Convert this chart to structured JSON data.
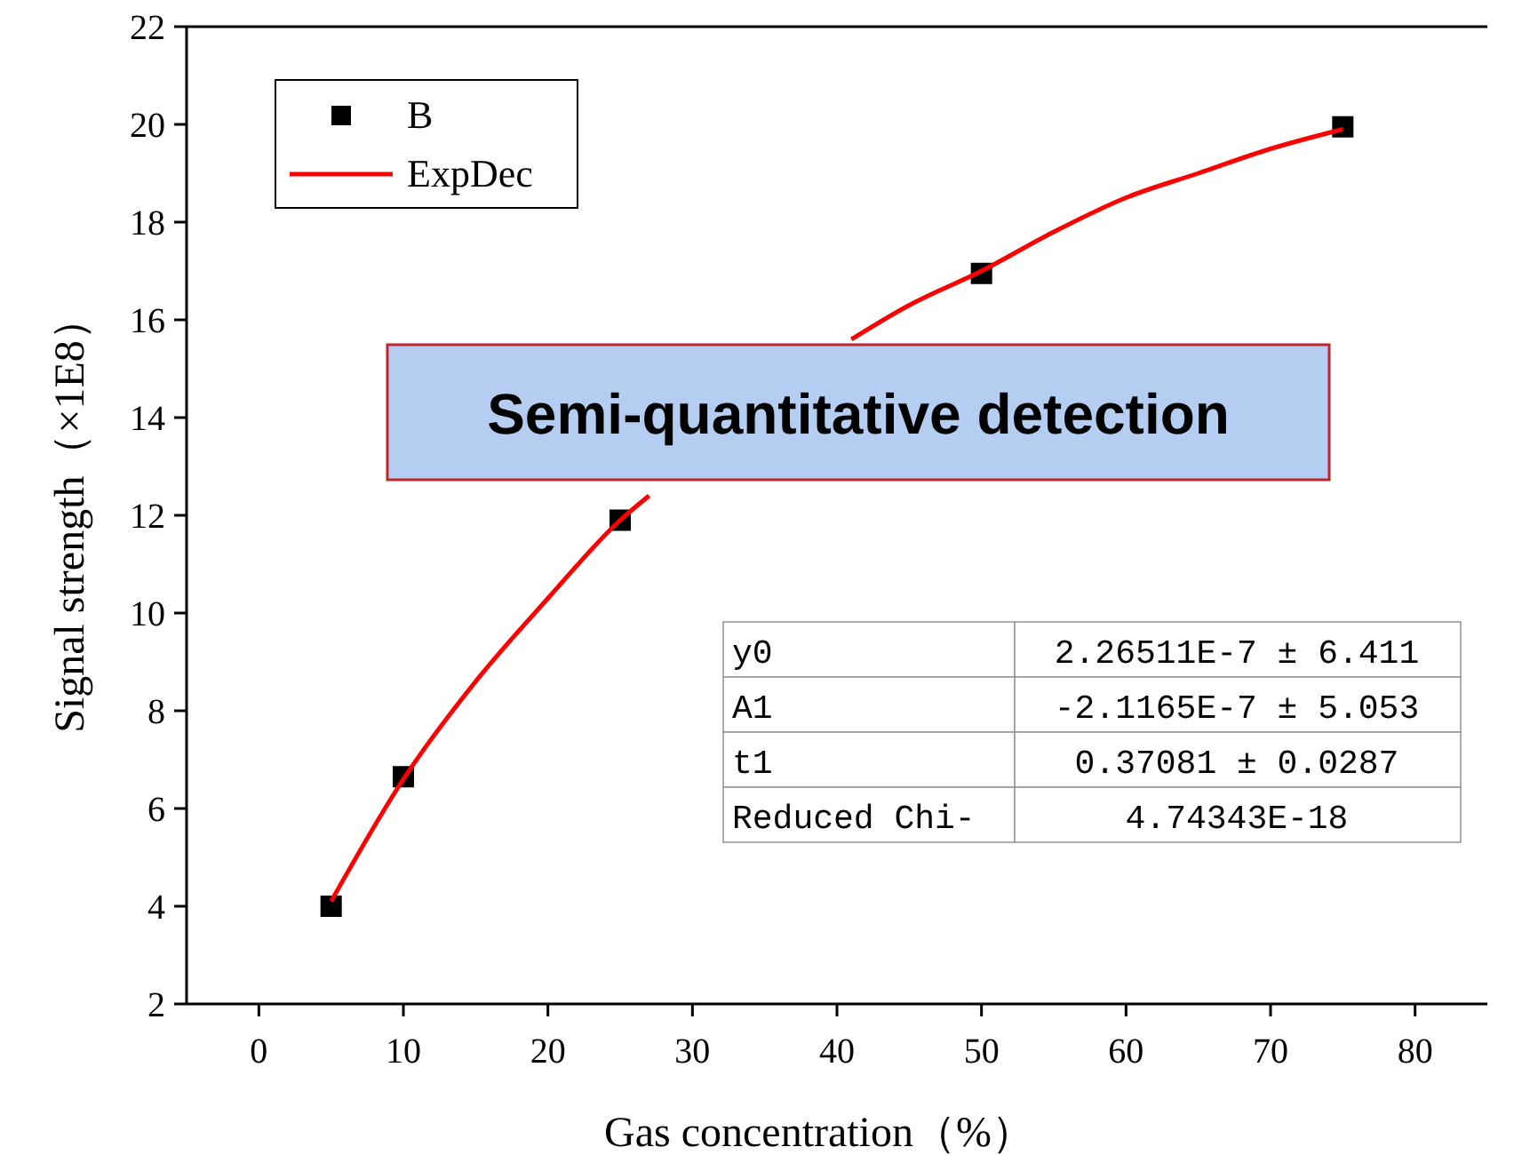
{
  "chart_data": {
    "type": "scatter",
    "xlabel": "Gas concentration（%）",
    "ylabel": "Signal strength（×1E8）",
    "xlim": [
      -5,
      85
    ],
    "xticks": [
      0,
      10,
      20,
      30,
      40,
      50,
      60,
      70,
      80
    ],
    "ylim": [
      2,
      22
    ],
    "yticks": [
      2,
      4,
      6,
      8,
      10,
      12,
      14,
      16,
      18,
      20,
      22
    ],
    "legend": "top left",
    "grid": false,
    "series": [
      {
        "name": "B",
        "marker": "square",
        "color": "#000000",
        "x": [
          5,
          10,
          25,
          50,
          75
        ],
        "values": [
          4.0,
          6.65,
          11.9,
          16.95,
          19.95
        ]
      },
      {
        "name": "ExpDec",
        "type": "line",
        "marker": "none",
        "line_style": "solid",
        "color": "#ff0000",
        "x": [
          5,
          10,
          15,
          20,
          25,
          27,
          30,
          35,
          41,
          45,
          50,
          55,
          60,
          65,
          70,
          75
        ],
        "values": [
          4.1,
          6.6,
          8.6,
          10.3,
          11.9,
          12.4,
          null,
          null,
          15.6,
          16.3,
          17.0,
          17.8,
          18.5,
          19.0,
          19.5,
          19.9
        ]
      }
    ],
    "annotations": [
      "Semi-quantitative detection",
      "y0",
      "2.26511E-7 ± 6.411",
      "A1",
      "-2.1165E-7 ± 5.053",
      "t1",
      "0.37081 ± 0.0287",
      "Reduced Chi-",
      "4.74343E-18"
    ]
  }
}
